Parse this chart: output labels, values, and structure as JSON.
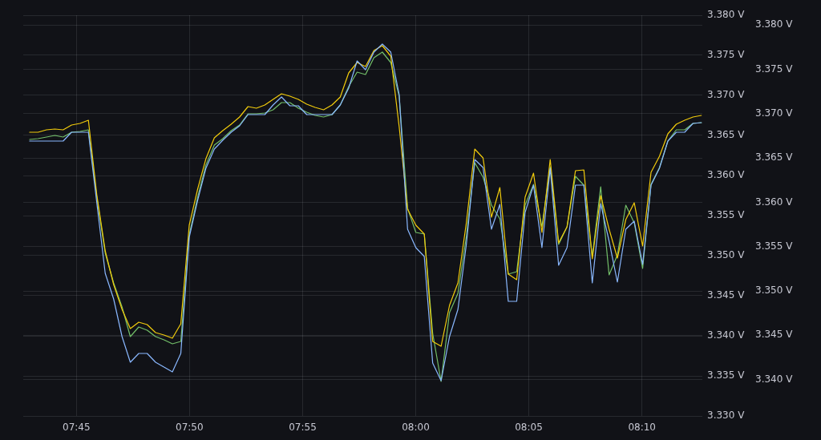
{
  "chart_data": {
    "type": "line",
    "x": [
      7.7155,
      7.7217,
      7.7279,
      7.7341,
      7.7402,
      7.7464,
      7.7526,
      7.7588,
      7.765,
      7.7712,
      7.7774,
      7.7836,
      7.7897,
      7.7959,
      7.8021,
      7.8083,
      7.8145,
      7.8207,
      7.8269,
      7.8331,
      7.8393,
      7.8454,
      7.8516,
      7.8578,
      7.864,
      7.8702,
      7.8764,
      7.8826,
      7.8888,
      7.8949,
      7.9011,
      7.9073,
      7.9135,
      7.9197,
      7.9259,
      7.9321,
      7.9383,
      7.9444,
      7.9506,
      7.9568,
      7.963,
      7.9692,
      7.9754,
      7.9816,
      7.9878,
      7.994,
      8.0001,
      8.0063,
      8.0125,
      8.0187,
      8.0249,
      8.0311,
      8.0373,
      8.0435,
      8.0496,
      8.0558,
      8.062,
      8.0682,
      8.0744,
      8.0806,
      8.0868,
      8.093,
      8.0991,
      8.1053,
      8.1115,
      8.1177,
      8.1239,
      8.1301,
      8.1363,
      8.1425,
      8.1486,
      8.1548,
      8.161,
      8.1672,
      8.1734,
      8.1796,
      8.1858,
      8.192,
      8.1982,
      8.2043,
      8.2105
    ],
    "series": [
      {
        "color": "#73bf69",
        "values": [
          3.3645,
          3.3646,
          3.3648,
          3.365,
          3.3648,
          3.3654,
          3.3655,
          3.3657,
          3.3573,
          3.3503,
          3.3466,
          3.3436,
          3.3399,
          3.3411,
          3.3407,
          3.3399,
          3.3395,
          3.339,
          3.3393,
          3.3526,
          3.3573,
          3.3613,
          3.3638,
          3.3646,
          3.3656,
          3.3663,
          3.3677,
          3.3677,
          3.3678,
          3.3682,
          3.3691,
          3.3691,
          3.3684,
          3.3679,
          3.3675,
          3.3673,
          3.3676,
          3.3688,
          3.3711,
          3.3729,
          3.3726,
          3.3747,
          3.3754,
          3.3741,
          3.3699,
          3.3559,
          3.3529,
          3.3527,
          3.3403,
          3.3343,
          3.3429,
          3.3453,
          3.3524,
          3.3616,
          3.3598,
          3.3563,
          3.3546,
          3.3477,
          3.348,
          3.3563,
          3.3589,
          3.3536,
          3.3611,
          3.3514,
          3.3536,
          3.3599,
          3.3588,
          3.3499,
          3.3586,
          3.3476,
          3.3501,
          3.3563,
          3.3541,
          3.3484,
          3.3589,
          3.361,
          3.3643,
          3.3657,
          3.3657,
          3.3665,
          3.3666
        ]
      },
      {
        "color": "#f2cc0c",
        "values": [
          3.3654,
          3.3654,
          3.3657,
          3.3658,
          3.3657,
          3.3663,
          3.3665,
          3.3669,
          3.3576,
          3.3506,
          3.3464,
          3.3433,
          3.3409,
          3.3417,
          3.3414,
          3.3404,
          3.3401,
          3.3397,
          3.3415,
          3.3538,
          3.3583,
          3.3621,
          3.3647,
          3.3656,
          3.3664,
          3.3673,
          3.3686,
          3.3684,
          3.3688,
          3.3695,
          3.3702,
          3.3699,
          3.3695,
          3.3689,
          3.3685,
          3.3682,
          3.3688,
          3.3698,
          3.3728,
          3.3741,
          3.3736,
          3.3756,
          3.3762,
          3.3749,
          3.3661,
          3.3558,
          3.3538,
          3.3527,
          3.3393,
          3.3387,
          3.3438,
          3.3466,
          3.3541,
          3.3633,
          3.3622,
          3.3548,
          3.3585,
          3.3477,
          3.347,
          3.3573,
          3.3603,
          3.3529,
          3.362,
          3.3516,
          3.3536,
          3.3606,
          3.3607,
          3.3496,
          3.3575,
          3.3533,
          3.3497,
          3.3545,
          3.3566,
          3.3512,
          3.3604,
          3.3624,
          3.3652,
          3.3664,
          3.3669,
          3.3673,
          3.3675
        ]
      },
      {
        "color": "#8ab8ff",
        "values": [
          3.3643,
          3.3643,
          3.3643,
          3.3643,
          3.3643,
          3.3654,
          3.3654,
          3.3654,
          3.3566,
          3.3478,
          3.3446,
          3.3399,
          3.3367,
          3.3378,
          3.3378,
          3.3367,
          3.3361,
          3.3355,
          3.3378,
          3.3523,
          3.3569,
          3.3609,
          3.3633,
          3.3644,
          3.3654,
          3.3662,
          3.3676,
          3.3676,
          3.3676,
          3.3688,
          3.3698,
          3.3687,
          3.3687,
          3.3676,
          3.3676,
          3.3676,
          3.3676,
          3.3688,
          3.3709,
          3.3743,
          3.3732,
          3.3754,
          3.3764,
          3.3754,
          3.3701,
          3.3533,
          3.351,
          3.3499,
          3.3366,
          3.3344,
          3.3399,
          3.3433,
          3.3514,
          3.362,
          3.361,
          3.3533,
          3.3564,
          3.3443,
          3.3443,
          3.3554,
          3.3588,
          3.351,
          3.3609,
          3.3488,
          3.351,
          3.3588,
          3.3588,
          3.3466,
          3.3565,
          3.3518,
          3.3467,
          3.3533,
          3.3543,
          3.3489,
          3.3588,
          3.3609,
          3.3643,
          3.3654,
          3.3654,
          3.3665,
          3.3666
        ]
      }
    ],
    "xlim": [
      7.7108,
      8.2112
    ],
    "xticks": [
      {
        "value": 7.75,
        "label": "07:45"
      },
      {
        "value": 7.8333,
        "label": "07:50"
      },
      {
        "value": 7.9167,
        "label": "07:55"
      },
      {
        "value": 8,
        "label": "08:00"
      },
      {
        "value": 8.0833,
        "label": "08:05"
      },
      {
        "value": 8.1667,
        "label": "08:10"
      }
    ],
    "ylim": [
      3.33,
      3.38
    ],
    "yticks": [
      {
        "value": 3.33,
        "label": "3.330 V"
      },
      {
        "value": 3.335,
        "label": "3.335 V"
      },
      {
        "value": 3.34,
        "label": "3.340 V"
      },
      {
        "value": 3.345,
        "label": "3.345 V"
      },
      {
        "value": 3.35,
        "label": "3.350 V"
      },
      {
        "value": 3.355,
        "label": "3.355 V"
      },
      {
        "value": 3.36,
        "label": "3.360 V"
      },
      {
        "value": 3.365,
        "label": "3.365 V"
      },
      {
        "value": 3.37,
        "label": "3.370 V"
      },
      {
        "value": 3.375,
        "label": "3.375 V"
      },
      {
        "value": 3.38,
        "label": "3.380 V"
      }
    ],
    "y2lim": [
      3.3359,
      3.3811
    ],
    "y2ticks": [
      {
        "value": 3.34,
        "label": "3.340 V"
      },
      {
        "value": 3.345,
        "label": "3.345 V"
      },
      {
        "value": 3.35,
        "label": "3.350 V"
      },
      {
        "value": 3.355,
        "label": "3.355 V"
      },
      {
        "value": 3.36,
        "label": "3.360 V"
      },
      {
        "value": 3.365,
        "label": "3.365 V"
      },
      {
        "value": 3.37,
        "label": "3.370 V"
      },
      {
        "value": 3.375,
        "label": "3.375 V"
      },
      {
        "value": 3.38,
        "label": "3.380 V"
      }
    ],
    "grid": true,
    "legend": false,
    "marker": "none"
  }
}
